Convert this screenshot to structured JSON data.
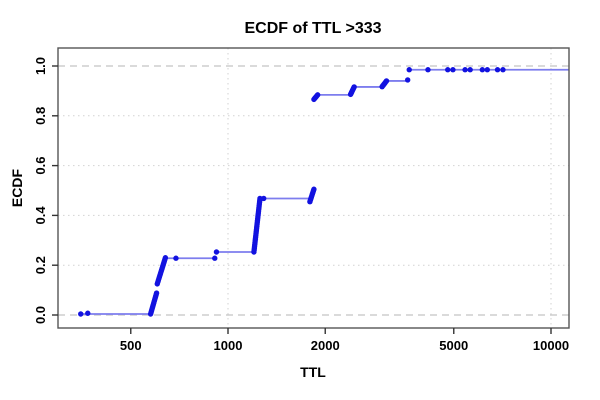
{
  "title": "ECDF of TTL >333",
  "colors": {
    "point": "#1212e0",
    "line": "#7d7dee",
    "refline_dashed": "#c3c3c3",
    "grid_dotted": "#d2d2d2",
    "frame": "#555555",
    "tick": "#333333",
    "text": "#000000",
    "background": "#ffffff"
  },
  "chart_data": {
    "type": "scatter",
    "subtype": "ecdf-step",
    "title": "ECDF of TTL >333",
    "xlabel": "TTL",
    "ylabel": "ECDF",
    "x_scale": "log10",
    "xlim": [
      298,
      11380
    ],
    "ylim": [
      -0.052,
      1.072
    ],
    "x_ticks": [
      500,
      1000,
      2000,
      5000,
      10000
    ],
    "y_ticks": [
      0.0,
      0.2,
      0.4,
      0.6,
      0.8,
      1.0
    ],
    "x_gridlines_dotted": [
      1000,
      10000
    ],
    "y_gridlines_dotted": [
      0.2,
      0.4,
      0.6,
      0.8
    ],
    "y_reflines_dashed": [
      0.0,
      1.0
    ],
    "legend": null,
    "grid": true,
    "segments": [
      [
        350,
        582,
        0.004
      ],
      [
        636,
        910,
        0.228
      ],
      [
        921,
        1205,
        0.253
      ],
      [
        1256,
        1818,
        0.468
      ],
      [
        1892,
        2396,
        0.884
      ],
      [
        2456,
        3000,
        0.916
      ],
      [
        3092,
        3598,
        0.94
      ],
      [
        3640,
        11380,
        0.985
      ]
    ],
    "points": [
      [
        350,
        0.004
      ],
      [
        368,
        0.007
      ],
      [
        690,
        0.228
      ],
      [
        910,
        0.228
      ],
      [
        921,
        0.253
      ],
      [
        1290,
        0.468
      ],
      [
        3600,
        0.944
      ],
      [
        3640,
        0.985
      ],
      [
        4160,
        0.985
      ],
      [
        4790,
        0.985
      ],
      [
        4970,
        0.985
      ],
      [
        5420,
        0.985
      ],
      [
        5620,
        0.985
      ],
      [
        6130,
        0.985
      ],
      [
        6350,
        0.985
      ],
      [
        6830,
        0.985
      ],
      [
        7100,
        0.985
      ]
    ],
    "clusters": [
      [
        576,
        601,
        0.004,
        0.088,
        14
      ],
      [
        604,
        640,
        0.125,
        0.23,
        16
      ],
      [
        1203,
        1256,
        0.253,
        0.468,
        30
      ],
      [
        1793,
        1845,
        0.455,
        0.505,
        9
      ],
      [
        1845,
        1895,
        0.866,
        0.884,
        7
      ],
      [
        2396,
        2458,
        0.886,
        0.916,
        8
      ],
      [
        3000,
        3095,
        0.917,
        0.94,
        7
      ]
    ]
  }
}
